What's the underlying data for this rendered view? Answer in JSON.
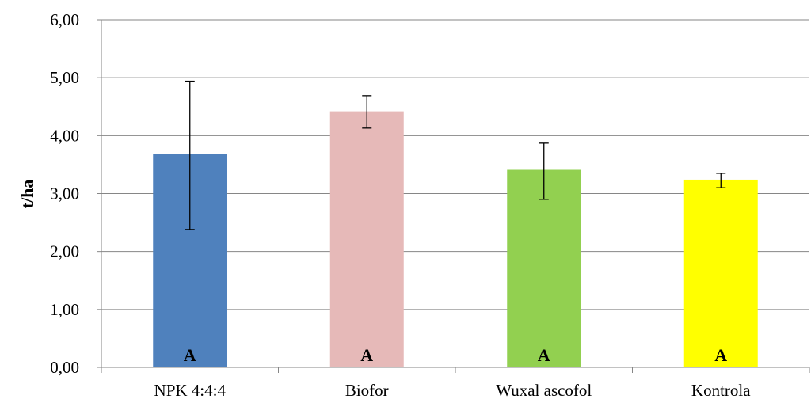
{
  "chart_data": {
    "type": "bar",
    "ylabel": "t/ha",
    "ylim": [
      0,
      6
    ],
    "yticks": [
      "0,00",
      "1,00",
      "2,00",
      "3,00",
      "4,00",
      "5,00",
      "6,00"
    ],
    "ytick_values": [
      0,
      1,
      2,
      3,
      4,
      5,
      6
    ],
    "grid": true,
    "categories": [
      "NPK 4:4:4",
      "Biofor",
      "Wuxal ascofol",
      "Kontrola"
    ],
    "values": [
      3.68,
      4.42,
      3.41,
      3.24
    ],
    "error_low": [
      2.38,
      4.13,
      2.9,
      3.1
    ],
    "error_high": [
      4.94,
      4.69,
      3.87,
      3.35
    ],
    "group_labels": [
      "A",
      "A",
      "A",
      "A"
    ],
    "colors": [
      "#4f81bd",
      "#e6b9b8",
      "#92d050",
      "#ffff00"
    ]
  }
}
